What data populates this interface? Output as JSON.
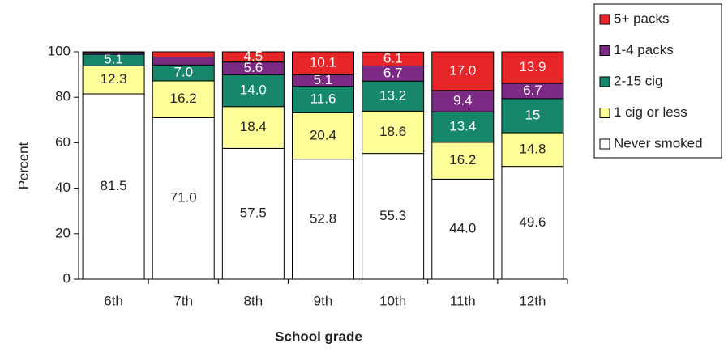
{
  "chart_data": {
    "type": "stacked-bar",
    "x_label": "School grade",
    "y_label": "Percent",
    "categories": [
      "6th",
      "7th",
      "8th",
      "9th",
      "10th",
      "11th",
      "12th"
    ],
    "ylim": [
      0,
      100
    ],
    "yticks": [
      0,
      20,
      40,
      60,
      80,
      100
    ],
    "series": [
      {
        "name": "Never smoked",
        "color": "#ffffff",
        "values": [
          81.5,
          71.0,
          57.5,
          52.8,
          55.3,
          44.0,
          49.6
        ],
        "value_labels": [
          "81.5",
          "71.0",
          "57.5",
          "52.8",
          "55.3",
          "44.0",
          "49.6"
        ]
      },
      {
        "name": "1 cig or less",
        "color": "#ffff99",
        "values": [
          12.3,
          16.2,
          18.4,
          20.4,
          18.6,
          16.2,
          14.8
        ],
        "value_labels": [
          "12.3",
          "16.2",
          "18.4",
          "20.4",
          "18.6",
          "16.2",
          "14.8"
        ]
      },
      {
        "name": "2-15 cig",
        "color": "#17876b",
        "values": [
          5.1,
          7.0,
          14.0,
          11.6,
          13.2,
          13.4,
          15
        ],
        "value_labels": [
          "5.1",
          "7.0",
          "14.0",
          "11.6",
          "13.2",
          "13.4",
          "15"
        ]
      },
      {
        "name": "1-4 packs",
        "color": "#7b2a83",
        "values": [
          0.7,
          3.5,
          5.6,
          5.1,
          6.7,
          9.4,
          6.7
        ],
        "value_labels": [
          null,
          null,
          "5.6",
          "5.1",
          "6.7",
          "9.4",
          "6.7"
        ]
      },
      {
        "name": "5+ packs",
        "color": "#e8262a",
        "values": [
          0.4,
          2.3,
          4.5,
          10.1,
          6.1,
          17.0,
          13.9
        ],
        "value_labels": [
          null,
          null,
          "4.5",
          "10.1",
          "6.1",
          "17.0",
          "13.9"
        ]
      }
    ]
  }
}
